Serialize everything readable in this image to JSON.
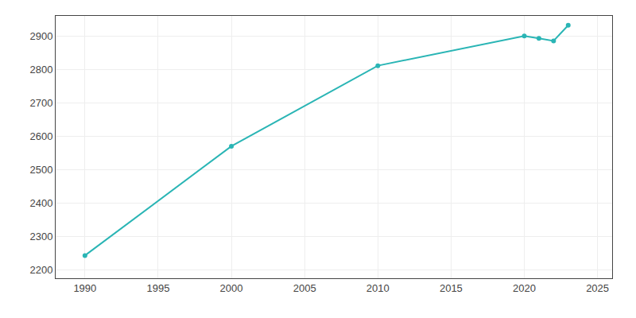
{
  "chart_data": {
    "type": "line",
    "x": [
      1990,
      2000,
      2010,
      2020,
      2021,
      2022,
      2023
    ],
    "values": [
      2243,
      2570,
      2811,
      2900,
      2893,
      2885,
      2932
    ],
    "color": "#2ab5b5",
    "marker": "circle",
    "xlim": [
      1988,
      2026
    ],
    "ylim": [
      2175,
      2960
    ],
    "xticks": [
      1990,
      1995,
      2000,
      2005,
      2010,
      2015,
      2020,
      2025
    ],
    "yticks": [
      2200,
      2300,
      2400,
      2500,
      2600,
      2700,
      2800,
      2900
    ],
    "grid": true
  }
}
